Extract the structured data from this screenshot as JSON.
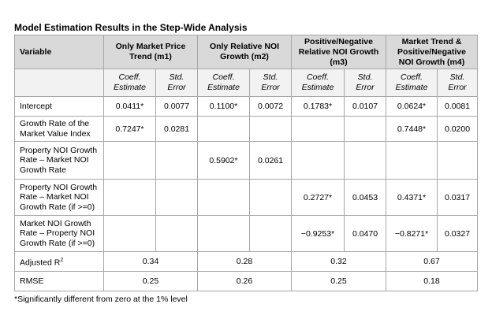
{
  "title": "Model Estimation Results in the Step-Wide Analysis",
  "header": {
    "variable": "Variable",
    "models": [
      "Only Market Price Trend (m1)",
      "Only Relative NOI Growth (m2)",
      "Positive/Negative Relative NOI Growth (m3)",
      "Market Trend & Positive/Negative NOI Growth (m4)"
    ],
    "coeff": "Coeff. Estimate",
    "stderr": "Std. Error"
  },
  "rows": [
    {
      "label": "Intercept",
      "cells": [
        "0.0411*",
        "0.0077",
        "0.1100*",
        "0.0072",
        "0.1783*",
        "0.0107",
        "0.0624*",
        "0.0081"
      ]
    },
    {
      "label": "Growth Rate of the Market Value Index",
      "cells": [
        "0.7247*",
        "0.0281",
        "",
        "",
        "",
        "",
        "0.7448*",
        "0.0200"
      ]
    },
    {
      "label": "Property NOI Growth Rate – Market NOI Growth Rate",
      "cells": [
        "",
        "",
        "0.5902*",
        "0.0261",
        "",
        "",
        "",
        ""
      ]
    },
    {
      "label": "Property NOI Growth Rate – Market NOI Growth Rate (if >=0)",
      "cells": [
        "",
        "",
        "",
        "",
        "0.2727*",
        "0.0453",
        "0.4371*",
        "0.0317"
      ]
    },
    {
      "label": "Market NOI Growth Rate – Property NOI Growth Rate (if >=0)",
      "cells": [
        "",
        "",
        "",
        "",
        "−0.9253*",
        "0.0470",
        "−0.8271*",
        "0.0327"
      ]
    }
  ],
  "adjusted_r2": {
    "label": "Adjusted R",
    "sup": "2",
    "values": [
      "0.34",
      "0.28",
      "0.32",
      "0.67"
    ]
  },
  "rmse": {
    "label": "RMSE",
    "values": [
      "0.25",
      "0.26",
      "0.25",
      "0.18"
    ]
  },
  "footnote": "*Significantly different from zero at the 1% level"
}
